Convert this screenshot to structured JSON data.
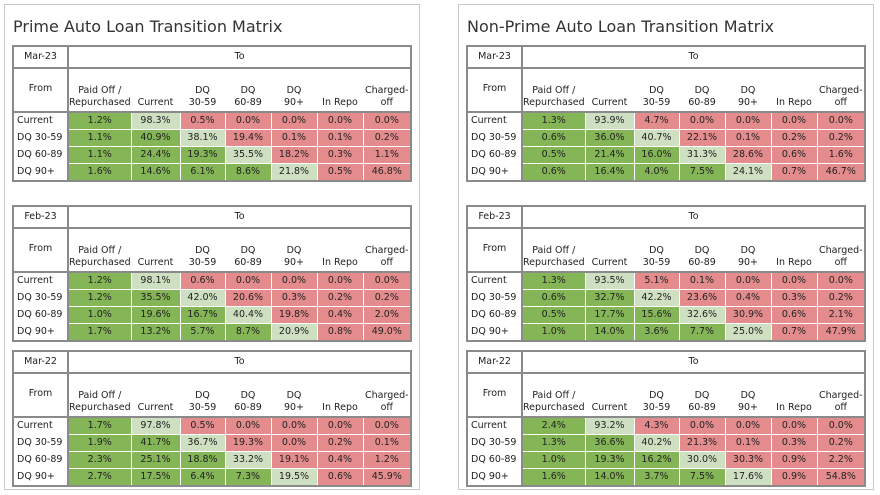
{
  "to": "To",
  "from": "From",
  "columns": [
    [
      "Paid Off /",
      "Repurchased"
    ],
    [
      "Current"
    ],
    [
      "DQ",
      "30-59"
    ],
    [
      "DQ",
      "60-89"
    ],
    [
      "DQ",
      "90+"
    ],
    [
      "In Repo"
    ],
    [
      "Charged-",
      "off"
    ]
  ],
  "row_labels": [
    "Current",
    "DQ 30-59",
    "DQ 60-89",
    "DQ 90+"
  ],
  "panels": [
    {
      "title": "Prime Auto Loan Transition Matrix",
      "tables": [
        {
          "period": "Mar-23",
          "rows": [
            [
              "1.2%",
              "98.3%",
              "0.5%",
              "0.0%",
              "0.0%",
              "0.0%",
              "0.0%"
            ],
            [
              "1.1%",
              "40.9%",
              "38.1%",
              "19.4%",
              "0.1%",
              "0.1%",
              "0.2%"
            ],
            [
              "1.1%",
              "24.4%",
              "19.3%",
              "35.5%",
              "18.2%",
              "0.3%",
              "1.1%"
            ],
            [
              "1.6%",
              "14.6%",
              "6.1%",
              "8.6%",
              "21.8%",
              "0.5%",
              "46.8%"
            ]
          ]
        },
        {
          "period": "Feb-23",
          "rows": [
            [
              "1.2%",
              "98.1%",
              "0.6%",
              "0.0%",
              "0.0%",
              "0.0%",
              "0.0%"
            ],
            [
              "1.2%",
              "35.5%",
              "42.0%",
              "20.6%",
              "0.3%",
              "0.2%",
              "0.2%"
            ],
            [
              "1.0%",
              "19.6%",
              "16.7%",
              "40.4%",
              "19.8%",
              "0.4%",
              "2.0%"
            ],
            [
              "1.7%",
              "13.2%",
              "5.7%",
              "8.7%",
              "20.9%",
              "0.8%",
              "49.0%"
            ]
          ]
        },
        {
          "period": "Mar-22",
          "rows": [
            [
              "1.7%",
              "97.8%",
              "0.5%",
              "0.0%",
              "0.0%",
              "0.0%",
              "0.0%"
            ],
            [
              "1.9%",
              "41.7%",
              "36.7%",
              "19.3%",
              "0.0%",
              "0.2%",
              "0.1%"
            ],
            [
              "2.3%",
              "25.1%",
              "18.8%",
              "33.2%",
              "19.1%",
              "0.4%",
              "1.2%"
            ],
            [
              "2.7%",
              "17.5%",
              "6.4%",
              "7.3%",
              "19.5%",
              "0.6%",
              "45.9%"
            ]
          ]
        }
      ]
    },
    {
      "title": "Non-Prime Auto Loan Transition Matrix",
      "tables": [
        {
          "period": "Mar-23",
          "rows": [
            [
              "1.3%",
              "93.9%",
              "4.7%",
              "0.0%",
              "0.0%",
              "0.0%",
              "0.0%"
            ],
            [
              "0.6%",
              "36.0%",
              "40.7%",
              "22.1%",
              "0.1%",
              "0.2%",
              "0.2%"
            ],
            [
              "0.5%",
              "21.4%",
              "16.0%",
              "31.3%",
              "28.6%",
              "0.6%",
              "1.6%"
            ],
            [
              "0.6%",
              "16.4%",
              "4.0%",
              "7.5%",
              "24.1%",
              "0.7%",
              "46.7%"
            ]
          ]
        },
        {
          "period": "Feb-23",
          "rows": [
            [
              "1.3%",
              "93.5%",
              "5.1%",
              "0.1%",
              "0.0%",
              "0.0%",
              "0.0%"
            ],
            [
              "0.6%",
              "32.7%",
              "42.2%",
              "23.6%",
              "0.4%",
              "0.3%",
              "0.2%"
            ],
            [
              "0.5%",
              "17.7%",
              "15.6%",
              "32.6%",
              "30.9%",
              "0.6%",
              "2.1%"
            ],
            [
              "1.0%",
              "14.0%",
              "3.6%",
              "7.7%",
              "25.0%",
              "0.7%",
              "47.9%"
            ]
          ]
        },
        {
          "period": "Mar-22",
          "rows": [
            [
              "2.4%",
              "93.2%",
              "4.3%",
              "0.0%",
              "0.0%",
              "0.0%",
              "0.0%"
            ],
            [
              "1.3%",
              "36.6%",
              "40.2%",
              "21.3%",
              "0.1%",
              "0.3%",
              "0.2%"
            ],
            [
              "1.0%",
              "19.3%",
              "16.2%",
              "30.0%",
              "30.3%",
              "0.9%",
              "2.2%"
            ],
            [
              "1.6%",
              "14.0%",
              "3.7%",
              "7.5%",
              "17.6%",
              "0.9%",
              "54.8%"
            ]
          ]
        }
      ]
    }
  ]
}
